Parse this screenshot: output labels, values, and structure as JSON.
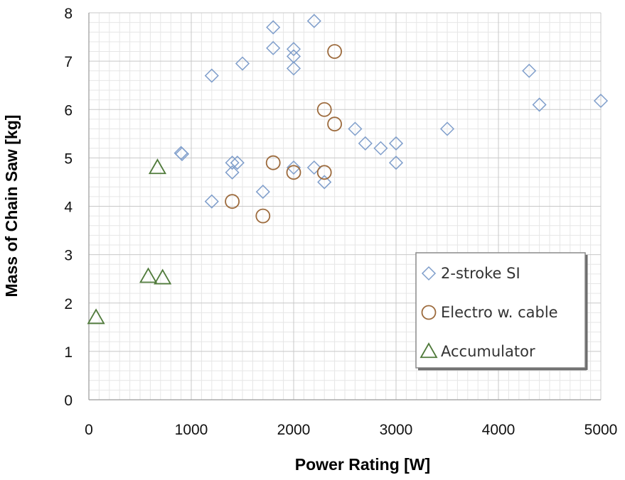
{
  "chart_data": {
    "type": "scatter",
    "xlabel": "Power Rating [W]",
    "ylabel": "Mass of Chain Saw [kg]",
    "xlim": [
      0,
      5000
    ],
    "ylim": [
      0,
      8
    ],
    "xticks": [
      0,
      1000,
      2000,
      3000,
      4000,
      5000
    ],
    "yticks": [
      0,
      1,
      2,
      3,
      4,
      5,
      6,
      7,
      8
    ],
    "grid": true,
    "legend_position": "bottom-right",
    "series": [
      {
        "name": "2-stroke SI",
        "marker": "diamond",
        "color": "#7f9ecb",
        "points": [
          [
            900,
            5.1
          ],
          [
            910,
            5.08
          ],
          [
            1200,
            6.7
          ],
          [
            1200,
            4.1
          ],
          [
            1400,
            4.9
          ],
          [
            1400,
            4.7
          ],
          [
            1450,
            4.9
          ],
          [
            1500,
            6.95
          ],
          [
            1700,
            4.3
          ],
          [
            1800,
            7.7
          ],
          [
            1800,
            7.27
          ],
          [
            2000,
            7.25
          ],
          [
            2000,
            7.1
          ],
          [
            2000,
            6.85
          ],
          [
            2000,
            4.8
          ],
          [
            2200,
            7.83
          ],
          [
            2200,
            4.8
          ],
          [
            2300,
            4.5
          ],
          [
            2600,
            5.6
          ],
          [
            2700,
            5.3
          ],
          [
            2850,
            5.2
          ],
          [
            3000,
            5.3
          ],
          [
            3000,
            4.9
          ],
          [
            3500,
            5.6
          ],
          [
            4300,
            6.8
          ],
          [
            4400,
            6.1
          ],
          [
            5000,
            6.18
          ]
        ]
      },
      {
        "name": "Electro w. cable",
        "marker": "circle",
        "color": "#9c6a3c",
        "points": [
          [
            1400,
            4.1
          ],
          [
            1700,
            3.8
          ],
          [
            1800,
            4.9
          ],
          [
            2000,
            4.7
          ],
          [
            2300,
            6.0
          ],
          [
            2300,
            4.7
          ],
          [
            2400,
            7.2
          ],
          [
            2400,
            5.7
          ]
        ]
      },
      {
        "name": "Accumulator",
        "marker": "triangle",
        "color": "#4f7a3a",
        "points": [
          [
            70,
            1.7
          ],
          [
            580,
            2.55
          ],
          [
            720,
            2.52
          ],
          [
            670,
            4.8
          ]
        ]
      }
    ]
  }
}
